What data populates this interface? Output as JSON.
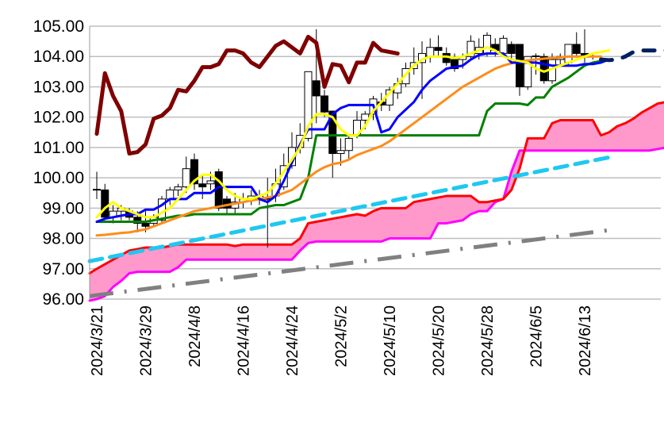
{
  "chart_data": {
    "type": "candlestick",
    "title": "",
    "xlabel": "",
    "ylabel": "",
    "ylim": [
      96,
      105
    ],
    "yticks": [
      "96.00",
      "97.00",
      "98.00",
      "99.00",
      "100.00",
      "101.00",
      "102.00",
      "103.00",
      "104.00",
      "105.00"
    ],
    "xtick_labels": [
      "2024/3/21",
      "2024/3/29",
      "2024/4/8",
      "2024/4/16",
      "2024/4/24",
      "2024/5/2",
      "2024/5/10",
      "2024/5/20",
      "2024/5/28",
      "2024/6/5",
      "2024/6/13"
    ],
    "xtick_index_step": 6,
    "grid": "horizontal",
    "candles": [
      [
        99.6,
        100.2,
        99.3,
        99.62
      ],
      [
        99.6,
        99.8,
        98.6,
        98.7
      ],
      [
        98.7,
        99.1,
        98.5,
        98.9
      ],
      [
        98.9,
        99.1,
        98.6,
        99.0
      ],
      [
        98.9,
        99.0,
        98.6,
        98.7
      ],
      [
        98.7,
        98.9,
        98.2,
        98.5
      ],
      [
        98.5,
        98.9,
        98.2,
        98.4
      ],
      [
        98.5,
        98.8,
        98.4,
        98.7
      ],
      [
        98.6,
        99.4,
        98.5,
        99.3
      ],
      [
        99.3,
        99.7,
        99.1,
        99.6
      ],
      [
        99.6,
        99.8,
        99.4,
        99.7
      ],
      [
        99.7,
        100.7,
        99.5,
        100.3
      ],
      [
        100.6,
        100.8,
        99.6,
        99.8
      ],
      [
        99.8,
        100.1,
        99.3,
        99.7
      ],
      [
        99.8,
        100.2,
        99.6,
        99.9
      ],
      [
        100.2,
        100.3,
        98.9,
        99.0
      ],
      [
        99.3,
        99.4,
        98.8,
        99.0
      ],
      [
        99.0,
        99.5,
        98.8,
        99.2
      ],
      [
        99.2,
        99.5,
        99.0,
        99.3
      ],
      [
        99.3,
        99.6,
        99.1,
        99.4
      ],
      [
        99.3,
        99.6,
        99.1,
        99.4
      ],
      [
        99.3,
        100.0,
        97.7,
        99.32
      ],
      [
        99.4,
        100.3,
        99.2,
        99.8
      ],
      [
        99.7,
        100.8,
        99.6,
        100.4
      ],
      [
        100.4,
        101.5,
        100.3,
        101.0
      ],
      [
        101.0,
        101.8,
        100.8,
        101.4
      ],
      [
        101.3,
        103.5,
        101.2,
        103.5
      ],
      [
        103.2,
        104.9,
        101.8,
        102.7
      ],
      [
        102.7,
        102.9,
        102.0,
        102.17
      ],
      [
        102.2,
        102.2,
        100.0,
        100.8
      ],
      [
        100.8,
        101.3,
        100.4,
        100.9
      ],
      [
        100.9,
        101.4,
        100.6,
        101.3
      ],
      [
        101.4,
        102.2,
        101.3,
        101.9
      ],
      [
        101.9,
        102.2,
        101.6,
        102.1
      ],
      [
        102.1,
        102.7,
        101.9,
        102.6
      ],
      [
        102.5,
        102.8,
        102.2,
        102.4
      ],
      [
        102.4,
        103.0,
        102.2,
        102.9
      ],
      [
        102.8,
        103.3,
        102.6,
        103.1
      ],
      [
        103.1,
        103.8,
        103.0,
        103.6
      ],
      [
        103.6,
        104.3,
        103.4,
        103.8
      ],
      [
        103.8,
        104.5,
        102.6,
        104.1
      ],
      [
        104.0,
        104.6,
        103.8,
        104.3
      ],
      [
        104.3,
        104.7,
        104.0,
        104.2
      ],
      [
        104.1,
        104.3,
        103.7,
        103.8
      ],
      [
        103.9,
        104.1,
        103.5,
        103.6
      ],
      [
        103.9,
        104.1,
        103.6,
        104.0
      ],
      [
        104.0,
        104.7,
        103.9,
        104.5
      ],
      [
        104.1,
        104.6,
        103.9,
        104.3
      ],
      [
        104.1,
        104.8,
        104.0,
        104.7
      ],
      [
        104.4,
        104.6,
        104.0,
        104.2
      ],
      [
        104.1,
        104.7,
        104.0,
        104.6
      ],
      [
        104.4,
        104.5,
        103.9,
        104.1
      ],
      [
        104.4,
        104.4,
        102.7,
        103.0
      ],
      [
        103.0,
        104.0,
        102.9,
        104.0
      ],
      [
        104.0,
        104.1,
        103.4,
        104.02
      ],
      [
        104.0,
        104.1,
        103.1,
        103.2
      ],
      [
        103.2,
        104.1,
        103.1,
        103.9
      ],
      [
        103.9,
        104.1,
        103.7,
        104.0
      ],
      [
        103.8,
        104.4,
        103.7,
        104.4
      ],
      [
        104.4,
        104.8,
        104.0,
        104.1
      ],
      [
        104.1,
        104.9,
        103.8,
        104.0
      ],
      [
        104.0,
        104.1,
        103.9,
        104.02
      ]
    ],
    "series": [
      {
        "name": "chikou",
        "color": "#7f0000",
        "start": 0,
        "values": [
          101.45,
          103.45,
          102.7,
          102.2,
          100.8,
          100.85,
          101.1,
          101.95,
          102.05,
          102.3,
          102.9,
          102.85,
          103.2,
          103.65,
          103.65,
          103.75,
          104.2,
          104.2,
          104.1,
          103.8,
          103.65,
          104.0,
          104.35,
          104.5,
          104.3,
          104.1,
          104.65,
          104.45,
          103.0,
          103.75,
          103.7,
          103.15,
          103.8,
          103.8,
          104.45,
          104.2,
          104.15,
          104.1
        ]
      },
      {
        "name": "tenkan",
        "color": "#ffff00",
        "start": 0,
        "values": [
          98.7,
          99.0,
          99.2,
          99.0,
          98.9,
          98.8,
          98.7,
          98.7,
          98.85,
          99.0,
          99.3,
          99.6,
          99.9,
          100.1,
          100.1,
          99.9,
          99.6,
          99.4,
          99.3,
          99.3,
          99.4,
          99.5,
          99.8,
          100.2,
          100.6,
          101.0,
          101.7,
          102.1,
          102.1,
          102.0,
          101.6,
          101.4,
          101.4,
          101.7,
          102.2,
          102.5,
          102.8,
          103.1,
          103.4,
          103.7,
          103.9,
          104.0,
          104.0,
          104.0,
          103.95,
          104.0,
          104.1,
          104.2,
          104.3,
          104.2,
          104.0,
          103.9,
          103.85,
          103.8,
          103.6,
          103.5,
          103.6,
          103.7,
          103.8,
          103.9,
          104.0,
          104.1,
          104.15,
          104.2
        ]
      },
      {
        "name": "kijun",
        "color": "#0000ff",
        "start": 0,
        "values": [
          98.55,
          98.65,
          98.7,
          98.75,
          98.8,
          98.8,
          98.95,
          98.95,
          99.1,
          99.3,
          99.3,
          99.3,
          99.5,
          99.5,
          99.5,
          99.7,
          99.7,
          99.7,
          99.7,
          99.7,
          99.3,
          99.2,
          99.4,
          99.9,
          100.5,
          101.1,
          101.6,
          101.6,
          101.6,
          102.1,
          102.3,
          102.4,
          102.4,
          102.4,
          102.4,
          101.5,
          101.6,
          102.0,
          102.25,
          102.5,
          102.9,
          103.2,
          103.4,
          103.6,
          103.65,
          103.7,
          103.9,
          104.05,
          104.1,
          104.1,
          104.1,
          103.8,
          103.8,
          103.8,
          103.8,
          103.75,
          103.7,
          103.7,
          103.7,
          103.7,
          103.75,
          103.75,
          103.8,
          103.9
        ]
      },
      {
        "name": "green",
        "color": "#008000",
        "start": 0,
        "values": [
          98.55,
          98.55,
          98.55,
          98.55,
          98.55,
          98.55,
          98.55,
          98.6,
          98.65,
          98.7,
          98.75,
          98.75,
          98.8,
          98.8,
          98.8,
          98.8,
          98.8,
          98.8,
          98.8,
          98.8,
          99.0,
          99.05,
          99.1,
          99.1,
          99.2,
          99.3,
          100.0,
          101.4,
          101.4,
          101.4,
          101.4,
          101.4,
          101.4,
          101.4,
          101.4,
          101.4,
          101.4,
          101.4,
          101.4,
          101.4,
          101.4,
          101.4,
          101.4,
          101.4,
          101.4,
          101.4,
          101.4,
          101.4,
          102.2,
          102.45,
          102.45,
          102.45,
          102.45,
          102.4,
          102.65,
          102.65,
          103.0,
          103.15,
          103.3,
          103.5,
          103.7,
          103.8,
          103.85
        ]
      },
      {
        "name": "orange",
        "color": "#ff8c1a",
        "start": 0,
        "values": [
          98.1,
          98.12,
          98.15,
          98.18,
          98.2,
          98.25,
          98.3,
          98.4,
          98.5,
          98.6,
          98.7,
          98.8,
          98.9,
          98.95,
          99.0,
          99.05,
          99.1,
          99.15,
          99.2,
          99.25,
          99.3,
          99.35,
          99.4,
          99.5,
          99.6,
          99.8,
          100.0,
          100.2,
          100.35,
          100.45,
          100.5,
          100.6,
          100.75,
          100.85,
          100.95,
          101.05,
          101.2,
          101.4,
          101.6,
          101.8,
          102.0,
          102.2,
          102.4,
          102.6,
          102.8,
          103.0,
          103.15,
          103.3,
          103.45,
          103.6,
          103.7,
          103.78,
          103.83,
          103.87,
          103.9,
          103.93,
          103.95,
          103.97,
          104.0,
          104.0,
          104.0,
          104.0,
          104.0
        ]
      },
      {
        "name": "senkou_a",
        "color": "#ff0000",
        "start": -1,
        "values": [
          96.85,
          97.0,
          97.15,
          97.3,
          97.45,
          97.6,
          97.65,
          97.7,
          97.7,
          97.7,
          97.75,
          97.8,
          97.8,
          97.8,
          97.8,
          97.8,
          97.8,
          97.8,
          97.75,
          97.8,
          97.8,
          97.8,
          97.8,
          97.8,
          97.8,
          97.8,
          98.0,
          98.5,
          98.55,
          98.6,
          98.65,
          98.7,
          98.75,
          98.8,
          98.75,
          98.9,
          99.0,
          99.0,
          99.0,
          99.0,
          99.2,
          99.25,
          99.3,
          99.35,
          99.4,
          99.4,
          99.4,
          99.4,
          99.2,
          99.2,
          99.25,
          99.3,
          99.6,
          100.3,
          101.3,
          101.3,
          101.3,
          101.8,
          101.9,
          101.9,
          101.9,
          101.9,
          101.9,
          101.4,
          101.5,
          101.7,
          101.8,
          101.95,
          102.15,
          102.3,
          102.45,
          102.5
        ]
      },
      {
        "name": "senkou_b",
        "color": "#ff00ff",
        "start": -1,
        "values": [
          95.95,
          96.0,
          96.1,
          96.4,
          96.6,
          96.85,
          96.9,
          96.9,
          96.9,
          96.9,
          96.9,
          97.05,
          97.3,
          97.3,
          97.3,
          97.3,
          97.3,
          97.3,
          97.3,
          97.3,
          97.3,
          97.3,
          97.3,
          97.3,
          97.3,
          97.3,
          97.6,
          97.85,
          97.9,
          97.9,
          97.9,
          97.9,
          97.9,
          97.9,
          97.9,
          97.9,
          97.9,
          98.0,
          98.0,
          98.0,
          98.0,
          98.0,
          98.0,
          98.5,
          98.5,
          98.55,
          98.6,
          98.8,
          98.9,
          98.9,
          99.2,
          99.3,
          100.2,
          100.9,
          100.9,
          100.9,
          100.9,
          100.9,
          100.9,
          100.9,
          100.9,
          100.9,
          100.9,
          100.9,
          100.9,
          100.9,
          100.9,
          100.9,
          100.9,
          100.9,
          100.95,
          101.0
        ]
      },
      {
        "name": "projection",
        "color": "#002060",
        "style": "dash",
        "start": 62,
        "values": [
          103.9,
          103.88,
          103.9,
          104.0,
          104.15,
          104.2,
          104.2,
          104.2,
          104.2
        ]
      },
      {
        "name": "trend_upper",
        "color": "#1ec8f0",
        "style": "dash",
        "start": -1,
        "values": [
          97.25,
          100.7
        ],
        "end": 63.5
      },
      {
        "name": "trend_lower",
        "color": "#808080",
        "style": "dashdot",
        "start": -1,
        "values": [
          96.1,
          98.3
        ],
        "end": 63.8
      }
    ]
  }
}
